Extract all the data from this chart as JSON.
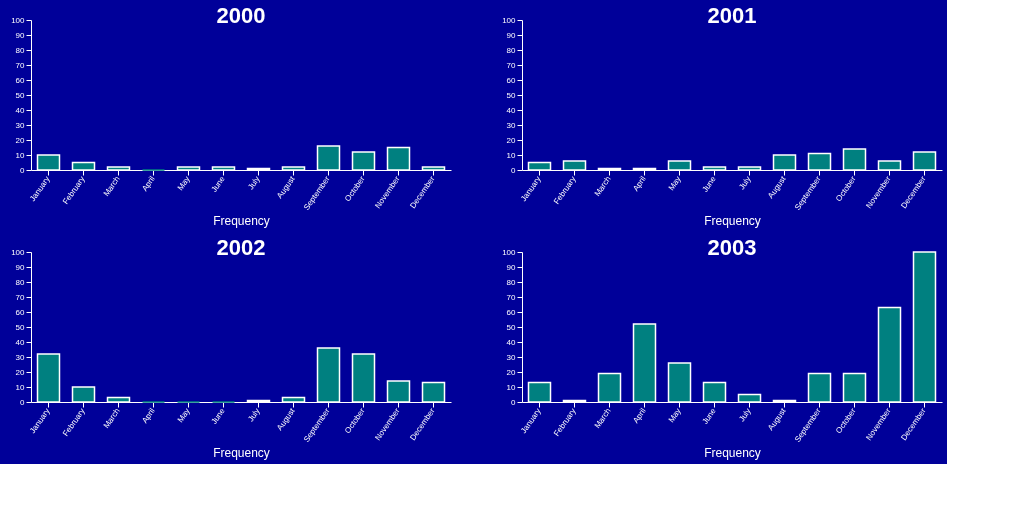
{
  "chart_data": [
    {
      "type": "bar",
      "title": "2000",
      "xlabel": "Frequency",
      "categories": [
        "January",
        "February",
        "March",
        "April",
        "May",
        "June",
        "July",
        "August",
        "September",
        "October",
        "November",
        "December"
      ],
      "values": [
        10,
        5,
        2,
        0,
        2,
        2,
        1,
        2,
        16,
        12,
        15,
        2
      ],
      "color": "#008080",
      "ylim": [
        0,
        100
      ],
      "yticks": [
        0,
        10,
        20,
        30,
        40,
        50,
        60,
        70,
        80,
        90,
        100
      ],
      "grid": false
    },
    {
      "type": "bar",
      "title": "2001",
      "xlabel": "Frequency",
      "categories": [
        "January",
        "February",
        "March",
        "April",
        "May",
        "June",
        "July",
        "August",
        "September",
        "October",
        "November",
        "December"
      ],
      "values": [
        5,
        6,
        1,
        1,
        6,
        2,
        2,
        10,
        11,
        14,
        6,
        12
      ],
      "color": "#008080",
      "ylim": [
        0,
        100
      ],
      "yticks": [
        0,
        10,
        20,
        30,
        40,
        50,
        60,
        70,
        80,
        90,
        100
      ],
      "grid": false
    },
    {
      "type": "bar",
      "title": "2002",
      "xlabel": "Frequency",
      "categories": [
        "January",
        "February",
        "March",
        "April",
        "May",
        "June",
        "July",
        "August",
        "September",
        "October",
        "November",
        "December"
      ],
      "values": [
        32,
        10,
        3,
        0,
        0,
        0,
        1,
        3,
        36,
        32,
        14,
        13
      ],
      "color": "#008080",
      "ylim": [
        0,
        100
      ],
      "yticks": [
        0,
        10,
        20,
        30,
        40,
        50,
        60,
        70,
        80,
        90,
        100
      ],
      "grid": false
    },
    {
      "type": "bar",
      "title": "2003",
      "xlabel": "Frequency",
      "categories": [
        "January",
        "February",
        "March",
        "April",
        "May",
        "June",
        "July",
        "August",
        "September",
        "October",
        "November",
        "December"
      ],
      "values": [
        13,
        1,
        19,
        52,
        26,
        13,
        5,
        1,
        19,
        19,
        63,
        100
      ],
      "color": "#008080",
      "ylim": [
        0,
        100
      ],
      "yticks": [
        0,
        10,
        20,
        30,
        40,
        50,
        60,
        70,
        80,
        90,
        100
      ],
      "grid": false
    }
  ]
}
